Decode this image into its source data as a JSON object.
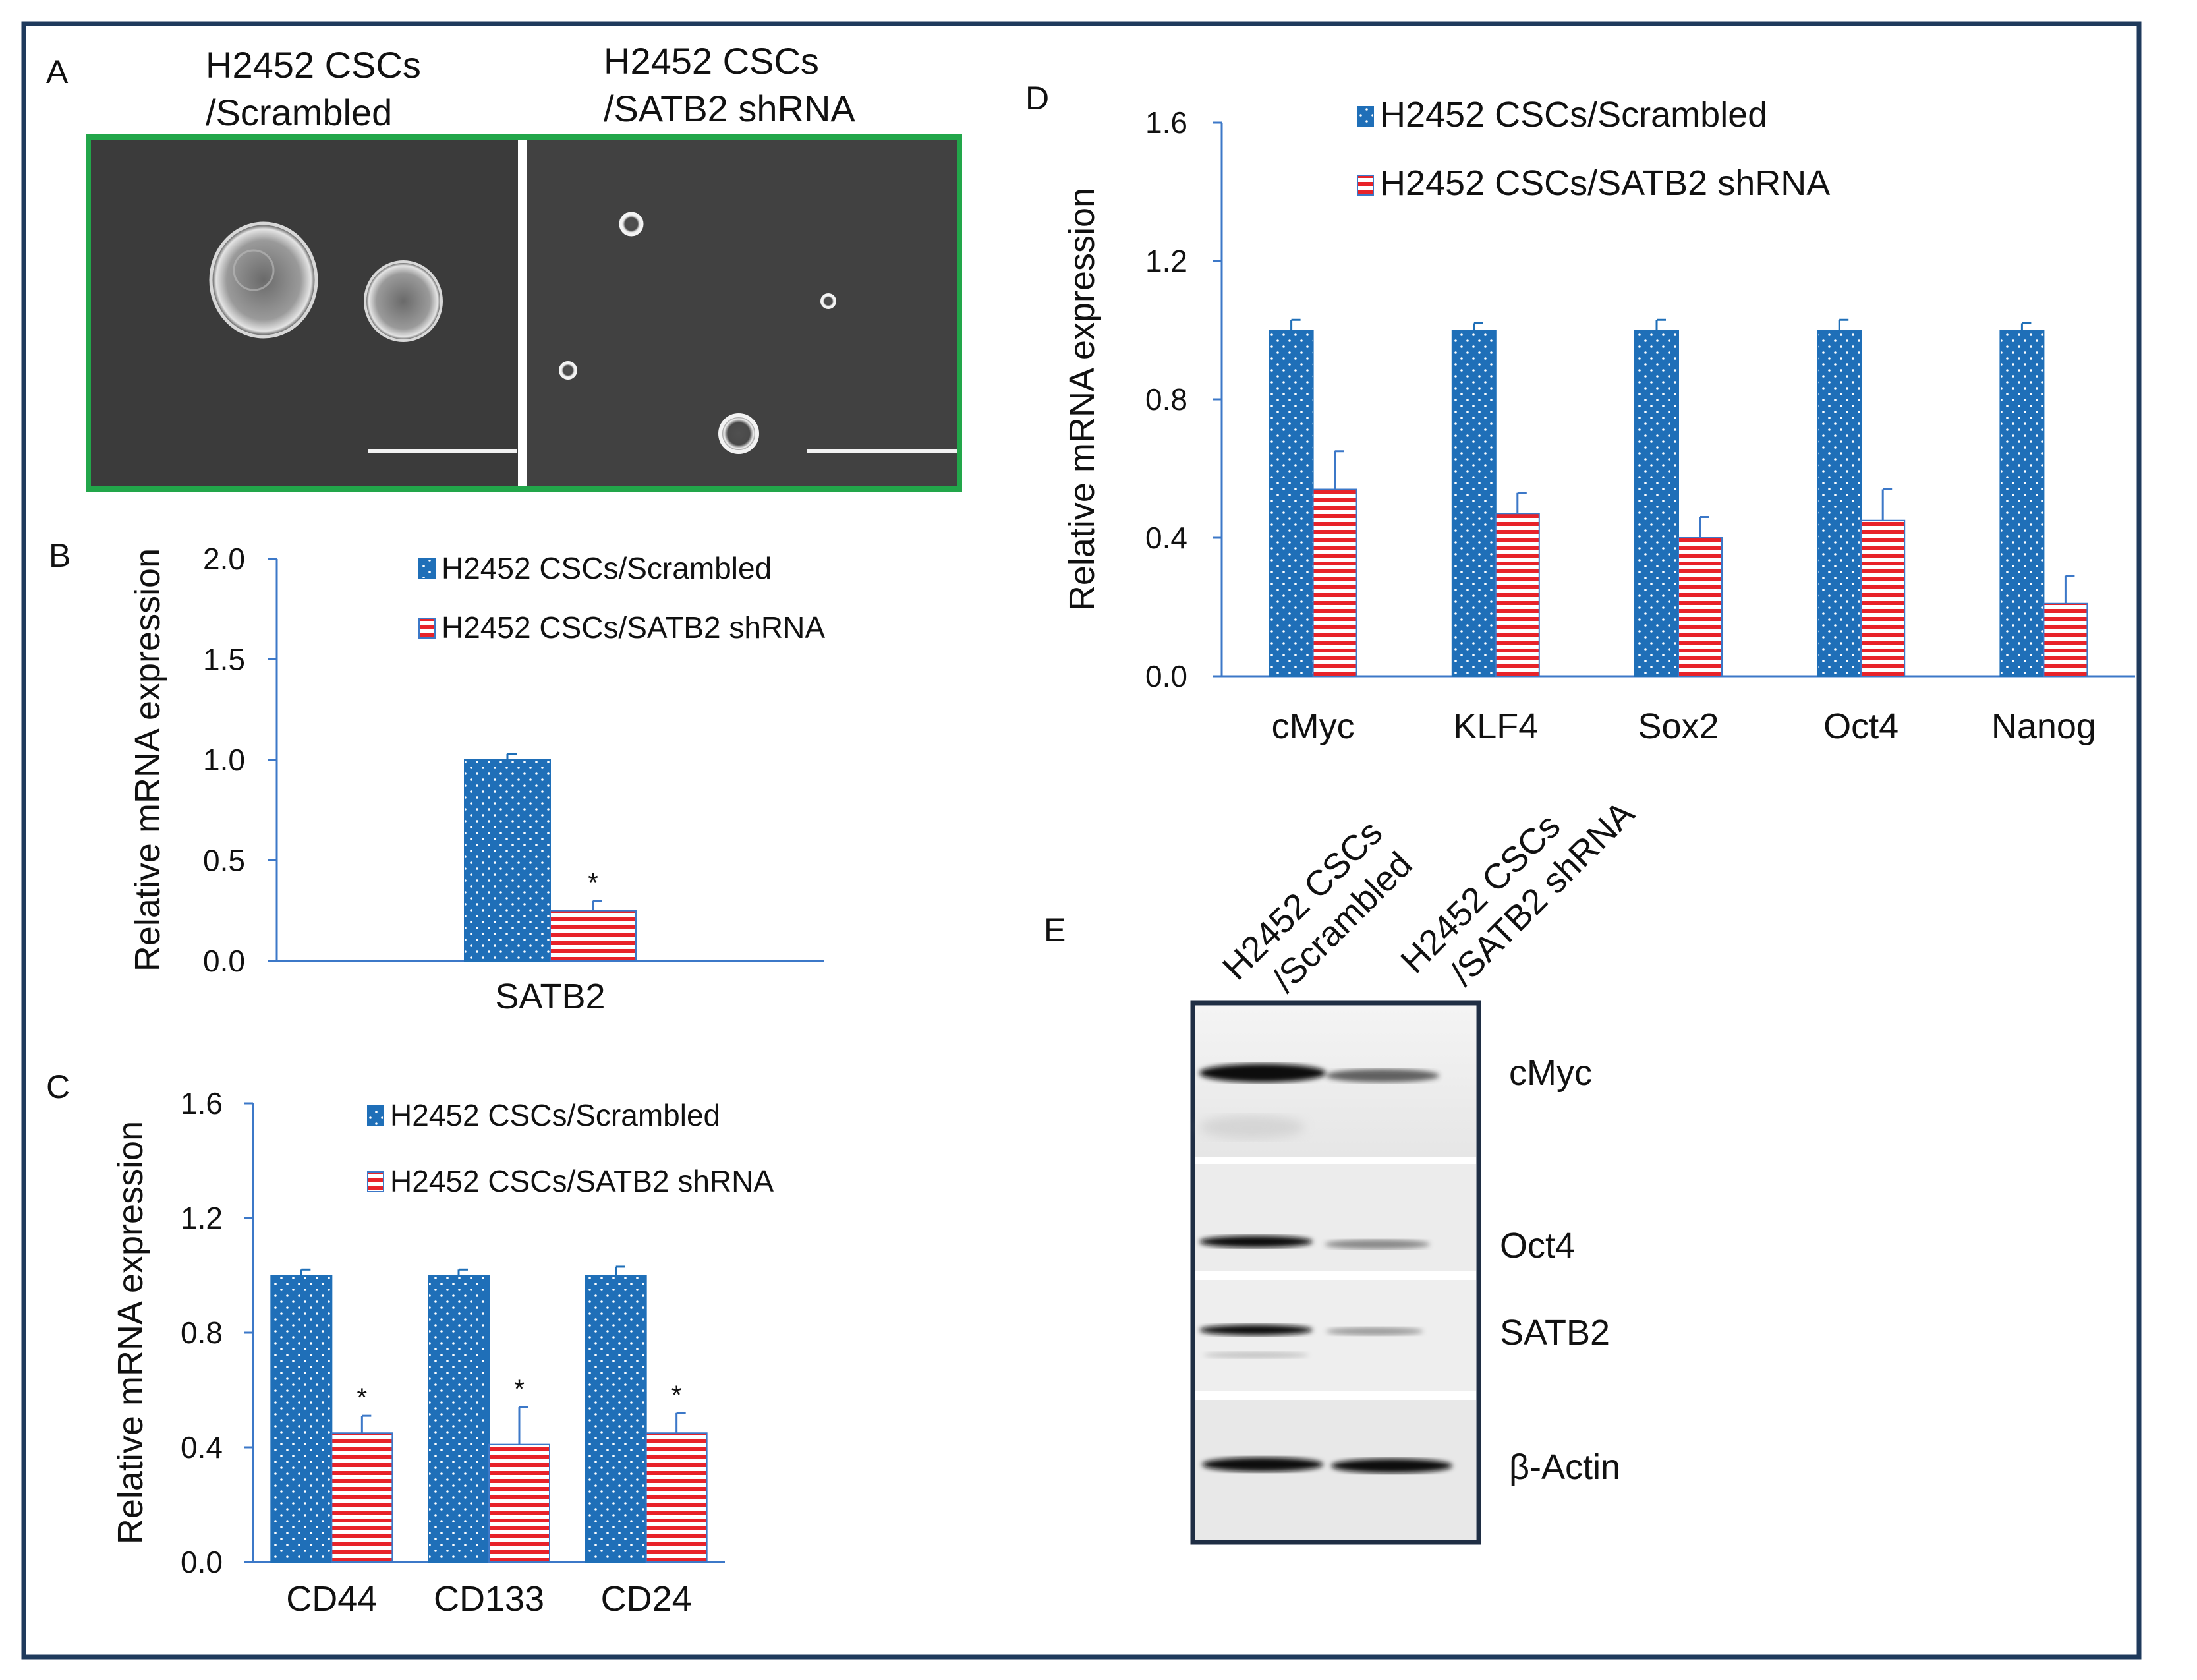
{
  "colors": {
    "frame": "#1f3a5c",
    "scrambled_fill": "#1f6fb8",
    "shrna_stripe": "#e8232a",
    "axis": "#3c78c8",
    "micro_frame": "#22a64a",
    "blot_frame": "#1f2e44"
  },
  "panel_a": {
    "label": "A",
    "left_title_1": "H2452 CSCs",
    "left_title_2": "/Scrambled",
    "right_title_1": "H2452 CSCs",
    "right_title_2": "/SATB2 shRNA"
  },
  "panel_b": {
    "label": "B"
  },
  "panel_c": {
    "label": "C"
  },
  "panel_d": {
    "label": "D"
  },
  "panel_e": {
    "label": "E",
    "lane_1_line_1": "H2452 CSCs",
    "lane_1_line_2": "/Scrambled",
    "lane_2_line_1": "H2452 CSCs",
    "lane_2_line_2": "/SATB2 shRNA",
    "proteins": [
      "cMyc",
      "Oct4",
      "SATB2",
      "β-Actin"
    ],
    "band_intensity": [
      {
        "protein": "cMyc",
        "scrambled": 1.0,
        "shrna": 0.45
      },
      {
        "protein": "Oct4",
        "scrambled": 0.95,
        "shrna": 0.35
      },
      {
        "protein": "SATB2",
        "scrambled": 0.9,
        "shrna": 0.3
      },
      {
        "protein": "β-Actin",
        "scrambled": 1.0,
        "shrna": 1.0
      }
    ]
  },
  "chart_data": [
    {
      "panel": "B",
      "type": "bar",
      "categories": [
        "SATB2"
      ],
      "series": [
        {
          "name": "H2452 CSCs/Scrambled",
          "values": [
            1.0
          ],
          "errors": [
            0.03
          ]
        },
        {
          "name": "H2452 CSCs/SATB2 shRNA",
          "values": [
            0.25
          ],
          "errors": [
            0.05
          ]
        }
      ],
      "significance": [
        "*"
      ],
      "ylabel": "Relative  mRNA  expression",
      "ylim": [
        0,
        2.0
      ],
      "yticks": [
        "0.0",
        "0.5",
        "1.0",
        "1.5",
        "2.0"
      ],
      "legend_position": "top"
    },
    {
      "panel": "C",
      "type": "bar",
      "categories": [
        "CD44",
        "CD133",
        "CD24"
      ],
      "series": [
        {
          "name": "H2452 CSCs/Scrambled",
          "values": [
            1.0,
            1.0,
            1.0
          ],
          "errors": [
            0.02,
            0.02,
            0.03
          ]
        },
        {
          "name": "H2452 CSCs/SATB2 shRNA",
          "values": [
            0.45,
            0.41,
            0.45
          ],
          "errors": [
            0.06,
            0.13,
            0.07
          ]
        }
      ],
      "significance": [
        "*",
        "*",
        "*"
      ],
      "ylabel": "Relative  mRNA  expression",
      "ylim": [
        0,
        1.6
      ],
      "yticks": [
        "0.0",
        "0.4",
        "0.8",
        "1.2",
        "1.6"
      ],
      "legend_position": "top"
    },
    {
      "panel": "D",
      "type": "bar",
      "categories": [
        "cMyc",
        "KLF4",
        "Sox2",
        "Oct4",
        "Nanog"
      ],
      "series": [
        {
          "name": "H2452 CSCs/Scrambled",
          "values": [
            1.0,
            1.0,
            1.0,
            1.0,
            1.0
          ],
          "errors": [
            0.03,
            0.02,
            0.03,
            0.03,
            0.02
          ]
        },
        {
          "name": "H2452 CSCs/SATB2 shRNA",
          "values": [
            0.54,
            0.47,
            0.4,
            0.45,
            0.21
          ],
          "errors": [
            0.11,
            0.06,
            0.06,
            0.09,
            0.08
          ]
        }
      ],
      "significance": [
        "",
        "",
        "",
        "",
        ""
      ],
      "ylabel": "Relative  mRNA  expression",
      "ylim": [
        0,
        1.6
      ],
      "yticks": [
        "0.0",
        "0.4",
        "0.8",
        "1.2",
        "1.6"
      ],
      "legend_position": "top"
    }
  ]
}
